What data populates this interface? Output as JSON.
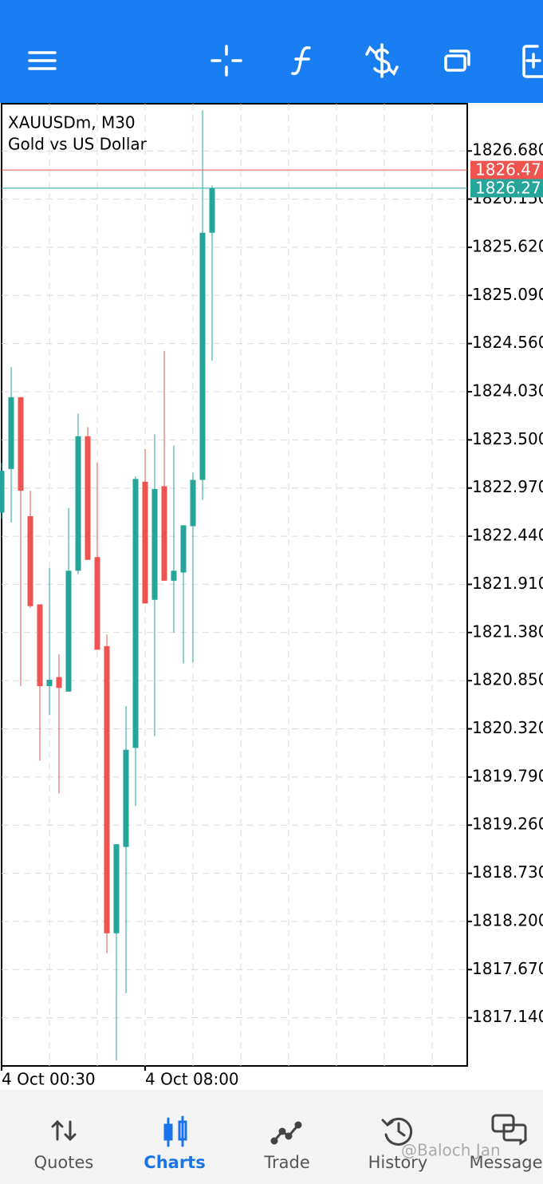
{
  "chart_data": {
    "type": "candlestick",
    "title": "XAUUSDm, M30",
    "subtitle": "Gold vs US Dollar",
    "categories": [
      "4 Oct 00:30",
      null,
      null,
      null,
      null,
      null,
      null,
      null,
      null,
      null,
      null,
      null,
      null,
      null,
      null,
      "4 Oct 08:00",
      null,
      null,
      null,
      null,
      null,
      null,
      null
    ],
    "open": [
      1822.7,
      1823.18,
      1823.97,
      1822.66,
      1821.69,
      1820.79,
      1820.89,
      1820.73,
      1822.06,
      1823.54,
      1822.21,
      1821.23,
      1818.07,
      1819.02,
      1820.11,
      1823.04,
      1821.74,
      1822.99,
      1821.95,
      1822.04,
      1822.55,
      1823.06,
      1825.78
    ],
    "high": [
      1823.25,
      1824.3,
      1823.97,
      1822.94,
      1821.69,
      1822.09,
      1821.14,
      1822.75,
      1823.79,
      1823.64,
      1823.25,
      1821.36,
      1819.05,
      1820.57,
      1823.1,
      1823.4,
      1823.56,
      1824.48,
      1823.44,
      1822.56,
      1823.14,
      1827.13,
      1826.3
    ],
    "low": [
      1822.63,
      1822.59,
      1820.79,
      1821.65,
      1819.97,
      1820.47,
      1819.61,
      1820.73,
      1822.02,
      1822.18,
      1821.19,
      1817.85,
      1816.67,
      1817.41,
      1819.47,
      1821.7,
      1820.24,
      1821.95,
      1821.38,
      1821.04,
      1821.05,
      1822.84,
      1824.37
    ],
    "close": [
      1823.16,
      1823.97,
      1822.94,
      1821.67,
      1820.79,
      1820.86,
      1820.77,
      1822.06,
      1823.54,
      1822.18,
      1821.19,
      1818.07,
      1819.05,
      1820.09,
      1823.07,
      1821.7,
      1822.96,
      1821.95,
      1822.06,
      1822.56,
      1823.06,
      1825.78,
      1826.27
    ],
    "up_color": "#26a69a",
    "down_color": "#ef5350",
    "bid": 1826.47,
    "ask": 1826.27,
    "ylim": [
      1816.61,
      1827.2
    ],
    "yticks": [
      {
        "value": 1826.68,
        "label": "1826.680"
      },
      {
        "value": 1826.15,
        "label": "1826.150"
      },
      {
        "value": 1825.62,
        "label": "1825.620"
      },
      {
        "value": 1825.09,
        "label": "1825.090"
      },
      {
        "value": 1824.56,
        "label": "1824.560"
      },
      {
        "value": 1824.03,
        "label": "1824.030"
      },
      {
        "value": 1823.5,
        "label": "1823.500"
      },
      {
        "value": 1822.97,
        "label": "1822.970"
      },
      {
        "value": 1822.44,
        "label": "1822.440"
      },
      {
        "value": 1821.91,
        "label": "1821.910"
      },
      {
        "value": 1821.38,
        "label": "1821.380"
      },
      {
        "value": 1820.85,
        "label": "1820.850"
      },
      {
        "value": 1820.32,
        "label": "1820.320"
      },
      {
        "value": 1819.79,
        "label": "1819.790"
      },
      {
        "value": 1819.26,
        "label": "1819.260"
      },
      {
        "value": 1818.73,
        "label": "1818.730"
      },
      {
        "value": 1818.2,
        "label": "1818.200"
      },
      {
        "value": 1817.67,
        "label": "1817.670"
      },
      {
        "value": 1817.14,
        "label": "1817.140"
      }
    ],
    "grid": true
  },
  "bottom_nav": {
    "items": [
      "Quotes",
      "Charts",
      "Trade",
      "History",
      "Messages"
    ],
    "active": 1
  },
  "watermark": "@Baloch Jan"
}
